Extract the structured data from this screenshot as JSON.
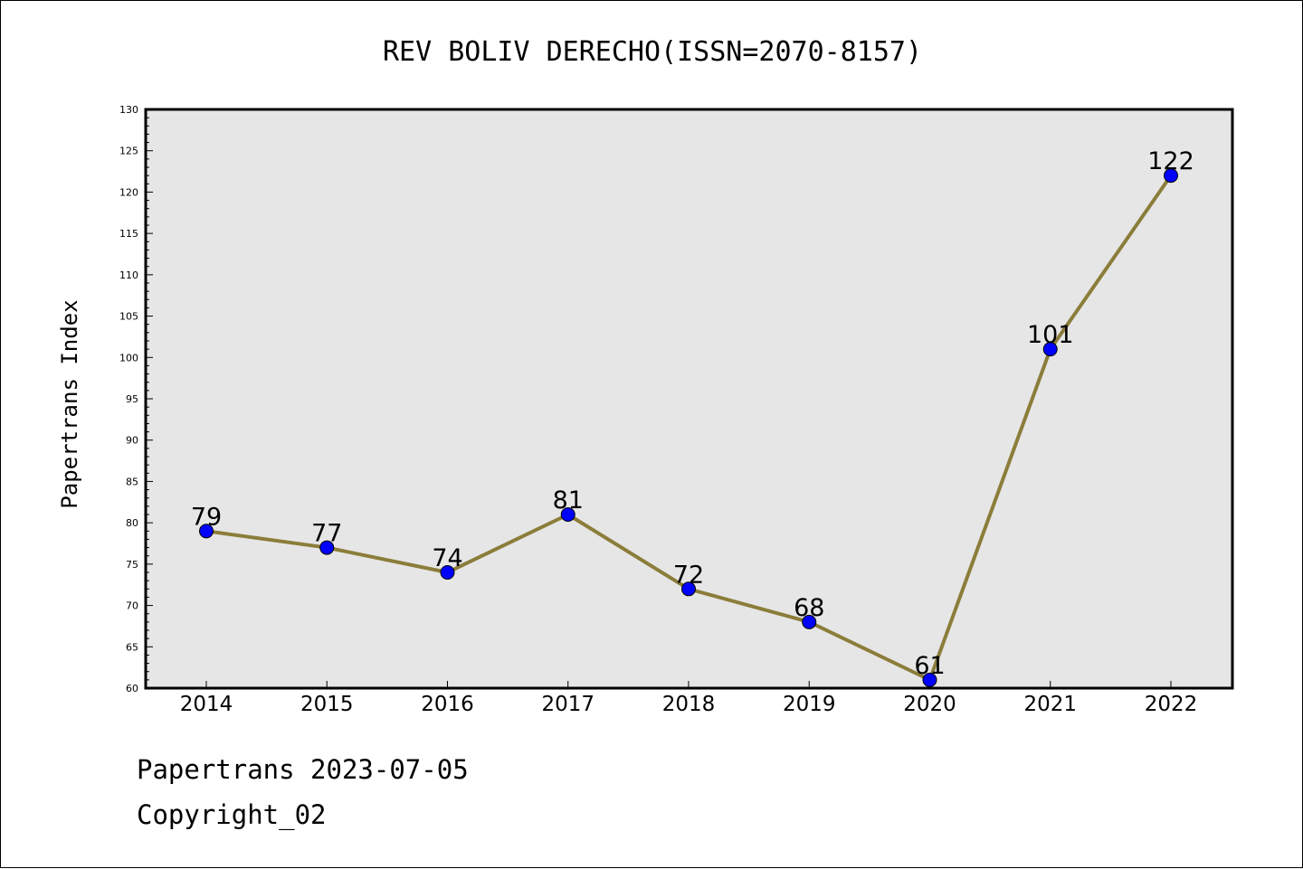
{
  "chart_data": {
    "type": "line",
    "title": "REV BOLIV DERECHO(ISSN=2070-8157)",
    "xlabel": "",
    "ylabel": "Papertrans Index",
    "categories": [
      "2014",
      "2015",
      "2016",
      "2017",
      "2018",
      "2019",
      "2020",
      "2021",
      "2022"
    ],
    "values": [
      79,
      77,
      74,
      81,
      72,
      68,
      61,
      101,
      122
    ],
    "data_labels": [
      "79",
      "77",
      "74",
      "81",
      "72",
      "68",
      "61",
      "101",
      "122"
    ],
    "ylim": [
      60,
      130
    ],
    "y_ticks": [
      "60",
      "65",
      "70",
      "75",
      "80",
      "85",
      "90",
      "95",
      "100",
      "105",
      "110",
      "115",
      "120",
      "125",
      "130"
    ],
    "grid": false,
    "colors": {
      "line": "#8b7d3a",
      "marker": "#0000ff",
      "plot_background": "#e6e6e6"
    }
  },
  "footer": {
    "line1": "Papertrans 2023-07-05",
    "line2": "Copyright_02"
  }
}
